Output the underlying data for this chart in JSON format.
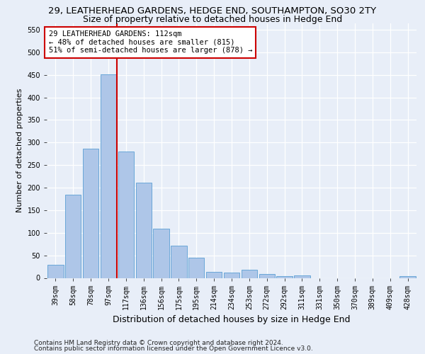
{
  "title1": "29, LEATHERHEAD GARDENS, HEDGE END, SOUTHAMPTON, SO30 2TY",
  "title2": "Size of property relative to detached houses in Hedge End",
  "xlabel": "Distribution of detached houses by size in Hedge End",
  "ylabel": "Number of detached properties",
  "footnote1": "Contains HM Land Registry data © Crown copyright and database right 2024.",
  "footnote2": "Contains public sector information licensed under the Open Government Licence v3.0.",
  "bar_labels": [
    "39sqm",
    "58sqm",
    "78sqm",
    "97sqm",
    "117sqm",
    "136sqm",
    "156sqm",
    "175sqm",
    "195sqm",
    "214sqm",
    "234sqm",
    "253sqm",
    "272sqm",
    "292sqm",
    "311sqm",
    "331sqm",
    "350sqm",
    "370sqm",
    "389sqm",
    "409sqm",
    "428sqm"
  ],
  "bar_values": [
    29,
    184,
    286,
    451,
    280,
    211,
    109,
    71,
    45,
    13,
    11,
    18,
    8,
    4,
    5,
    0,
    0,
    0,
    0,
    0,
    4
  ],
  "bar_color": "#aec6e8",
  "bar_edge_color": "#5a9fd4",
  "vline_color": "#cc0000",
  "annotation_text": "29 LEATHERHEAD GARDENS: 112sqm\n← 48% of detached houses are smaller (815)\n51% of semi-detached houses are larger (878) →",
  "annotation_box_color": "#ffffff",
  "annotation_box_edge_color": "#cc0000",
  "ylim": [
    0,
    565
  ],
  "yticks": [
    0,
    50,
    100,
    150,
    200,
    250,
    300,
    350,
    400,
    450,
    500,
    550
  ],
  "bg_color": "#e8eef8",
  "plot_bg_color": "#e8eef8",
  "grid_color": "#ffffff",
  "title1_fontsize": 9.5,
  "title2_fontsize": 9,
  "xlabel_fontsize": 9,
  "ylabel_fontsize": 8,
  "tick_fontsize": 7,
  "annotation_fontsize": 7.5,
  "footnote_fontsize": 6.5
}
